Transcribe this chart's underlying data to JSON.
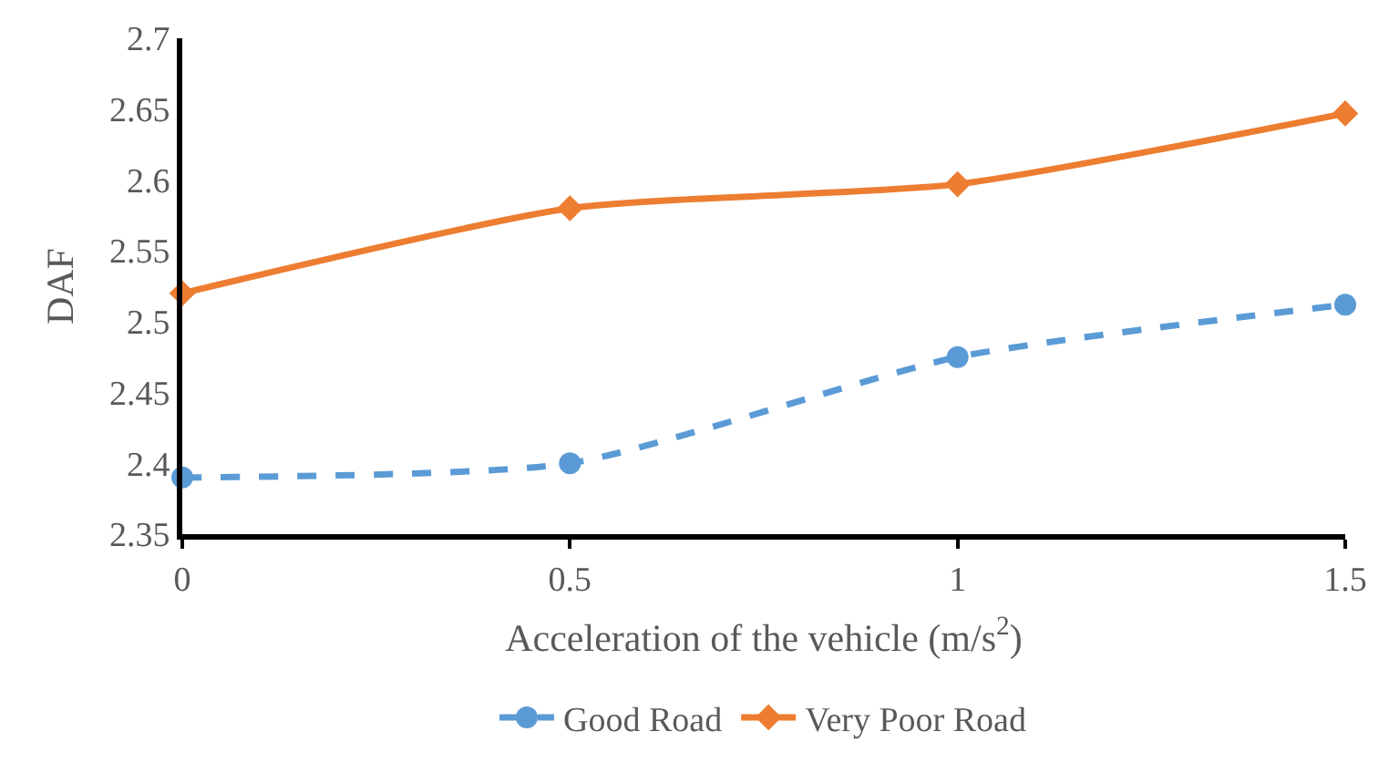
{
  "chart_data": {
    "type": "line",
    "xlabel": "Acceleration of the vehicle (m/s$^{2}$)",
    "ylabel": "DAF",
    "x": [
      0,
      0.5,
      1,
      1.5
    ],
    "series": [
      {
        "name": "Good Road",
        "color": "#5b9bd5",
        "values": [
          2.39,
          2.4,
          2.475,
          2.512
        ],
        "marker": "circle",
        "line_style": "dashed"
      },
      {
        "name": "Very Poor Road",
        "color": "#ed7d31",
        "values": [
          2.52,
          2.58,
          2.597,
          2.647
        ],
        "marker": "diamond",
        "line_style": "solid"
      }
    ],
    "xlim": [
      0,
      1.5
    ],
    "xticks": [
      0,
      0.5,
      1,
      1.5
    ],
    "ylim": [
      2.35,
      2.7
    ],
    "yticks": [
      2.35,
      2.4,
      2.45,
      2.5,
      2.55,
      2.6,
      2.65,
      2.7
    ],
    "legend": "bottom"
  }
}
